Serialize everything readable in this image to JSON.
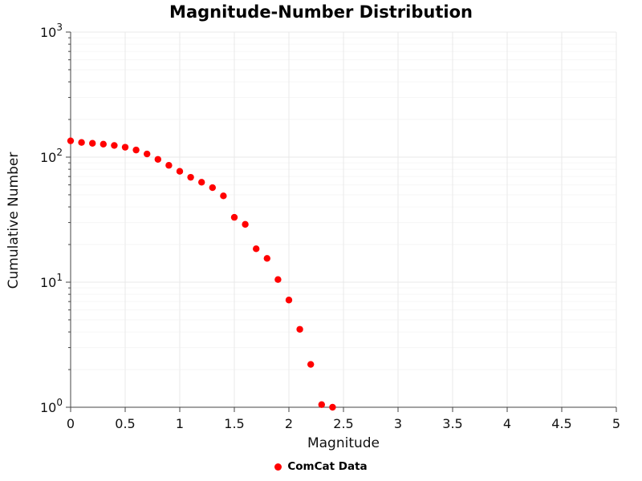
{
  "chart_data": {
    "type": "scatter",
    "title": "Magnitude-Number Distribution",
    "xlabel": "Magnitude",
    "ylabel": "Cumulative Number",
    "x_scale": "linear",
    "y_scale": "log",
    "xlim": [
      0,
      5
    ],
    "ylim": [
      1,
      1000
    ],
    "grid": true,
    "legend": {
      "position": "bottom-center",
      "items": [
        {
          "label": "ComCat Data",
          "color": "#ff0000",
          "marker": "circle"
        }
      ]
    },
    "x_ticks": [
      {
        "value": 0,
        "label": "0"
      },
      {
        "value": 0.5,
        "label": "0.5"
      },
      {
        "value": 1,
        "label": "1"
      },
      {
        "value": 1.5,
        "label": "1.5"
      },
      {
        "value": 2,
        "label": "2"
      },
      {
        "value": 2.5,
        "label": "2.5"
      },
      {
        "value": 3,
        "label": "3"
      },
      {
        "value": 3.5,
        "label": "3.5"
      },
      {
        "value": 4,
        "label": "4"
      },
      {
        "value": 4.5,
        "label": "4.5"
      },
      {
        "value": 5,
        "label": "5"
      }
    ],
    "y_ticks": [
      {
        "value": 1,
        "base": "10",
        "exp": "0"
      },
      {
        "value": 10,
        "base": "10",
        "exp": "1"
      },
      {
        "value": 100,
        "base": "10",
        "exp": "2"
      },
      {
        "value": 1000,
        "base": "10",
        "exp": "3"
      }
    ],
    "series": [
      {
        "name": "ComCat Data",
        "color": "#ff0000",
        "x": [
          0,
          0.1,
          0.2,
          0.3,
          0.4,
          0.5,
          0.6,
          0.7,
          0.8,
          0.9,
          1.0,
          1.1,
          1.2,
          1.3,
          1.4,
          1.5,
          1.6,
          1.7,
          1.8,
          1.9,
          2.0,
          2.1,
          2.2,
          2.3,
          2.4
        ],
        "y": [
          135,
          131,
          129,
          127,
          124,
          120,
          114,
          106,
          96,
          86,
          77,
          69,
          63,
          57,
          49,
          33,
          29,
          18.5,
          15.5,
          10.5,
          7.2,
          4.2,
          2.2,
          1.05,
          1.0
        ]
      }
    ]
  }
}
